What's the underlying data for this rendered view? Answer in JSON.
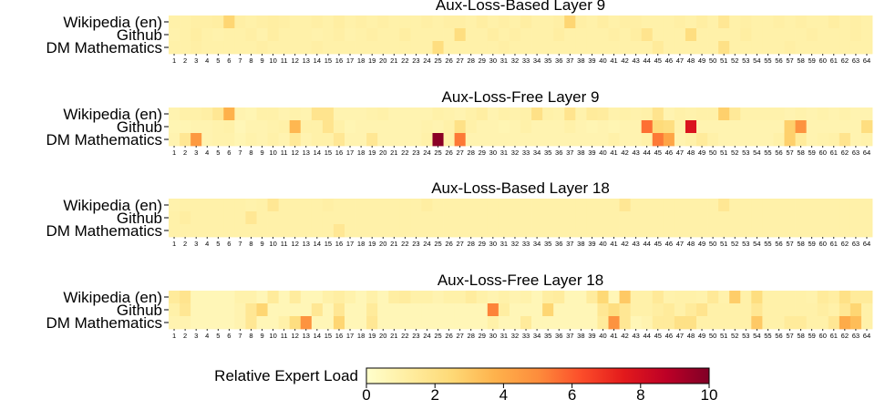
{
  "chart_data": {
    "type": "heatmap",
    "rows": [
      "Wikipedia (en)",
      "Github",
      "DM Mathematics"
    ],
    "columns": [
      "1",
      "2",
      "3",
      "4",
      "5",
      "6",
      "7",
      "8",
      "9",
      "10",
      "11",
      "12",
      "13",
      "14",
      "15",
      "16",
      "17",
      "18",
      "19",
      "20",
      "21",
      "22",
      "23",
      "24",
      "25",
      "26",
      "27",
      "28",
      "29",
      "30",
      "31",
      "32",
      "33",
      "34",
      "35",
      "36",
      "37",
      "38",
      "39",
      "40",
      "41",
      "42",
      "43",
      "44",
      "45",
      "46",
      "47",
      "48",
      "49",
      "50",
      "51",
      "52",
      "53",
      "54",
      "55",
      "56",
      "57",
      "58",
      "59",
      "60",
      "61",
      "62",
      "63",
      "64"
    ],
    "colorscale": {
      "label": "Relative Expert Load",
      "min": 0,
      "max": 10,
      "ticks": [
        "0",
        "2",
        "4",
        "6",
        "8",
        "10"
      ],
      "colors": [
        "#ffffcc",
        "#ffeda0",
        "#fed976",
        "#feb24c",
        "#fd8d3c",
        "#fc4e2a",
        "#e31a1c",
        "#bd0026",
        "#800026"
      ]
    },
    "panels": [
      {
        "title": "Aux-Loss-Based Layer 9",
        "values": [
          [
            1.0,
            1.0,
            1.1,
            1.1,
            1.2,
            2.6,
            1.1,
            1.0,
            1.1,
            1.2,
            1.1,
            1.0,
            1.0,
            1.1,
            1.0,
            1.2,
            1.0,
            1.1,
            1.0,
            1.1,
            1.0,
            1.0,
            1.0,
            1.1,
            1.0,
            1.1,
            1.1,
            1.0,
            1.2,
            1.0,
            1.1,
            1.0,
            1.2,
            1.0,
            1.0,
            1.1,
            2.6,
            1.1,
            1.0,
            1.2,
            1.0,
            1.1,
            1.1,
            1.0,
            1.0,
            1.0,
            1.1,
            1.0,
            1.2,
            1.0,
            1.6,
            1.0,
            1.1,
            1.0,
            1.0,
            1.1,
            1.0,
            1.1,
            1.0,
            1.0,
            1.2,
            1.0,
            1.1,
            1.0
          ],
          [
            0.9,
            1.0,
            1.2,
            1.0,
            0.9,
            1.0,
            1.0,
            1.1,
            0.9,
            1.2,
            1.0,
            1.0,
            1.0,
            0.9,
            1.0,
            1.1,
            0.9,
            1.0,
            1.1,
            1.0,
            1.0,
            1.2,
            1.0,
            1.0,
            1.0,
            1.0,
            2.2,
            1.0,
            1.0,
            1.2,
            1.0,
            1.1,
            1.0,
            1.0,
            1.0,
            1.2,
            1.0,
            1.0,
            1.0,
            1.0,
            1.1,
            1.0,
            1.2,
            1.8,
            1.0,
            1.0,
            1.0,
            2.2,
            1.0,
            1.0,
            1.0,
            1.0,
            1.2,
            1.0,
            1.0,
            1.0,
            1.0,
            1.0,
            1.1,
            1.0,
            1.0,
            1.0,
            1.1,
            1.0
          ],
          [
            1.0,
            1.0,
            1.1,
            1.0,
            1.0,
            1.0,
            1.0,
            1.0,
            1.1,
            1.0,
            1.0,
            1.0,
            1.0,
            1.1,
            1.0,
            1.0,
            1.0,
            1.0,
            1.0,
            1.0,
            1.0,
            1.0,
            1.0,
            1.0,
            2.2,
            1.0,
            1.0,
            1.0,
            1.0,
            1.0,
            1.1,
            1.0,
            1.0,
            1.0,
            1.0,
            1.0,
            1.0,
            1.0,
            1.0,
            1.0,
            1.0,
            1.0,
            1.0,
            1.0,
            1.4,
            1.0,
            1.0,
            1.0,
            1.0,
            1.0,
            2.0,
            1.0,
            1.0,
            1.0,
            1.0,
            1.0,
            1.1,
            1.0,
            1.0,
            1.0,
            1.0,
            1.0,
            1.0,
            1.0
          ]
        ]
      },
      {
        "title": "Aux-Loss-Free Layer 9",
        "values": [
          [
            0.8,
            1.0,
            1.0,
            1.1,
            1.6,
            3.8,
            0.8,
            0.7,
            1.0,
            1.0,
            0.8,
            0.9,
            0.8,
            1.8,
            1.8,
            0.8,
            0.8,
            0.8,
            0.9,
            1.0,
            0.8,
            0.8,
            0.8,
            0.8,
            1.0,
            0.9,
            0.8,
            1.0,
            1.2,
            0.8,
            1.0,
            0.9,
            1.0,
            2.0,
            1.0,
            0.9,
            1.8,
            0.9,
            1.4,
            1.3,
            0.9,
            1.0,
            0.9,
            1.0,
            1.8,
            0.8,
            1.0,
            0.9,
            1.0,
            1.0,
            2.8,
            1.5,
            0.9,
            0.9,
            0.9,
            0.9,
            0.8,
            0.9,
            0.8,
            0.9,
            0.8,
            0.9,
            0.8,
            0.8
          ],
          [
            0.7,
            0.7,
            0.8,
            0.8,
            0.9,
            1.0,
            0.6,
            0.8,
            0.8,
            0.9,
            1.0,
            3.6,
            1.0,
            1.0,
            1.8,
            1.0,
            0.7,
            0.8,
            0.8,
            0.8,
            0.8,
            0.8,
            0.8,
            0.9,
            0.8,
            1.0,
            2.0,
            1.0,
            0.8,
            0.8,
            0.7,
            0.8,
            1.0,
            0.8,
            0.8,
            0.8,
            1.0,
            0.8,
            0.7,
            0.8,
            0.7,
            0.8,
            0.8,
            5.6,
            2.4,
            2.2,
            0.9,
            7.8,
            0.8,
            0.8,
            0.8,
            0.8,
            0.8,
            0.8,
            0.8,
            0.8,
            2.8,
            4.8,
            0.8,
            0.8,
            0.8,
            0.8,
            0.8,
            2.2
          ],
          [
            0.8,
            1.6,
            4.6,
            0.8,
            0.9,
            0.9,
            0.7,
            0.9,
            0.8,
            1.0,
            0.8,
            1.5,
            0.8,
            1.0,
            1.0,
            1.6,
            0.8,
            0.8,
            1.6,
            0.8,
            0.8,
            0.8,
            0.8,
            1.0,
            9.8,
            1.0,
            5.4,
            0.8,
            0.8,
            0.8,
            0.8,
            0.8,
            0.8,
            0.8,
            0.8,
            0.8,
            0.8,
            0.8,
            0.8,
            0.8,
            1.0,
            0.8,
            0.8,
            1.0,
            5.4,
            4.2,
            0.8,
            1.0,
            1.4,
            1.0,
            0.8,
            0.8,
            0.8,
            0.8,
            0.8,
            1.0,
            2.8,
            1.4,
            0.8,
            0.9,
            1.0,
            1.8,
            0.8,
            0.9
          ]
        ]
      },
      {
        "title": "Aux-Loss-Based Layer 18",
        "values": [
          [
            0.9,
            1.0,
            1.0,
            1.0,
            1.0,
            1.0,
            1.0,
            0.9,
            1.0,
            1.6,
            1.0,
            1.0,
            1.0,
            1.0,
            1.1,
            1.0,
            1.0,
            1.0,
            1.0,
            1.0,
            1.0,
            1.0,
            1.0,
            1.2,
            1.0,
            1.0,
            1.0,
            1.0,
            1.0,
            1.0,
            1.0,
            1.0,
            1.0,
            1.0,
            1.0,
            1.0,
            1.0,
            1.0,
            1.0,
            1.0,
            1.0,
            1.6,
            1.0,
            1.0,
            1.0,
            1.0,
            1.0,
            1.0,
            1.0,
            1.0,
            1.6,
            1.0,
            1.0,
            1.0,
            1.0,
            1.0,
            1.0,
            1.0,
            1.0,
            1.0,
            1.0,
            1.0,
            1.0,
            1.0
          ],
          [
            1.0,
            1.2,
            1.0,
            1.0,
            1.0,
            1.0,
            1.0,
            1.6,
            1.0,
            1.0,
            1.0,
            1.0,
            1.0,
            1.0,
            1.0,
            1.0,
            1.0,
            1.0,
            1.0,
            1.0,
            1.0,
            1.0,
            1.0,
            1.0,
            1.0,
            1.0,
            1.0,
            1.0,
            1.0,
            1.0,
            1.0,
            1.0,
            1.0,
            1.0,
            1.0,
            1.0,
            1.0,
            1.0,
            1.0,
            1.0,
            1.0,
            1.0,
            1.0,
            1.0,
            1.0,
            1.0,
            1.0,
            1.0,
            1.0,
            1.0,
            1.0,
            1.0,
            1.0,
            1.0,
            1.0,
            1.0,
            1.0,
            1.0,
            1.0,
            1.0,
            1.0,
            1.0,
            1.0,
            1.0
          ],
          [
            1.0,
            1.0,
            1.0,
            1.0,
            1.0,
            1.0,
            1.0,
            1.0,
            1.0,
            1.0,
            1.0,
            1.0,
            1.0,
            1.0,
            1.0,
            1.6,
            1.0,
            1.0,
            1.0,
            1.0,
            1.0,
            1.0,
            1.0,
            1.0,
            1.0,
            1.0,
            1.0,
            1.0,
            1.0,
            1.0,
            1.0,
            1.0,
            1.0,
            1.0,
            1.0,
            1.0,
            1.0,
            1.0,
            1.0,
            1.0,
            1.0,
            1.0,
            1.0,
            1.0,
            1.0,
            1.0,
            1.0,
            1.0,
            1.0,
            1.0,
            1.0,
            1.0,
            1.0,
            1.0,
            1.0,
            1.0,
            1.0,
            1.0,
            1.0,
            1.0,
            1.0,
            1.0,
            1.0,
            1.0
          ]
        ]
      },
      {
        "title": "Aux-Loss-Free Layer 18",
        "values": [
          [
            1.4,
            1.8,
            0.6,
            0.6,
            0.6,
            0.6,
            0.9,
            0.9,
            0.6,
            1.4,
            0.6,
            1.3,
            0.6,
            0.6,
            1.0,
            1.2,
            0.9,
            0.6,
            1.0,
            0.6,
            1.2,
            1.3,
            1.0,
            1.0,
            0.8,
            1.0,
            1.0,
            1.3,
            1.0,
            0.8,
            1.0,
            0.8,
            0.9,
            0.6,
            1.2,
            1.3,
            0.6,
            0.6,
            1.3,
            2.5,
            0.6,
            3.0,
            1.0,
            1.0,
            1.5,
            0.9,
            1.0,
            1.0,
            0.9,
            1.5,
            0.9,
            2.9,
            1.0,
            2.2,
            1.0,
            1.0,
            1.0,
            1.0,
            0.9,
            1.4,
            1.2,
            2.0,
            1.4,
            1.4
          ],
          [
            1.0,
            1.6,
            0.6,
            0.6,
            0.6,
            0.6,
            0.8,
            1.6,
            2.6,
            0.6,
            0.6,
            0.6,
            0.6,
            1.6,
            0.6,
            1.6,
            0.6,
            0.6,
            1.4,
            0.6,
            0.6,
            0.6,
            0.6,
            0.6,
            0.6,
            0.6,
            0.6,
            0.6,
            0.6,
            5.2,
            1.2,
            0.6,
            0.6,
            0.6,
            2.6,
            0.6,
            0.6,
            0.6,
            0.6,
            1.6,
            2.2,
            1.6,
            1.0,
            1.0,
            1.2,
            1.4,
            1.0,
            1.4,
            1.8,
            1.0,
            1.0,
            1.0,
            1.0,
            1.6,
            1.0,
            1.0,
            1.0,
            1.0,
            1.0,
            1.2,
            1.0,
            1.6,
            2.6,
            1.0
          ],
          [
            0.8,
            0.8,
            0.6,
            0.6,
            0.6,
            0.6,
            0.8,
            1.6,
            0.6,
            0.6,
            1.0,
            2.2,
            4.8,
            0.6,
            0.6,
            2.6,
            0.6,
            0.6,
            1.6,
            0.6,
            0.6,
            0.6,
            0.6,
            0.6,
            0.6,
            0.6,
            0.6,
            0.6,
            0.6,
            1.0,
            0.6,
            0.6,
            1.4,
            0.6,
            0.6,
            0.6,
            0.6,
            0.6,
            0.6,
            1.4,
            4.8,
            1.6,
            0.6,
            0.8,
            1.4,
            1.4,
            2.0,
            2.0,
            1.0,
            1.0,
            1.0,
            1.0,
            1.0,
            3.0,
            1.0,
            1.0,
            1.4,
            1.4,
            1.0,
            1.0,
            1.6,
            4.0,
            3.4,
            1.0
          ]
        ]
      }
    ]
  }
}
